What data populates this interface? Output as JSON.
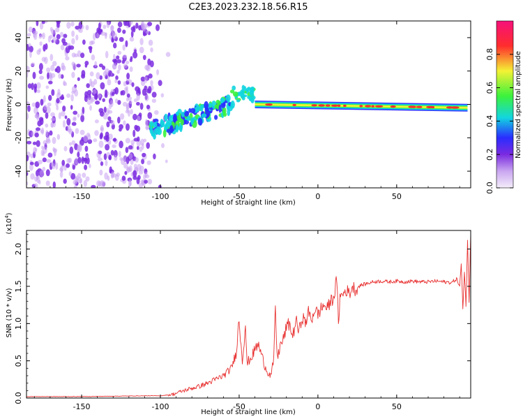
{
  "title": "C2E3.2023.232.18.56.R15",
  "colors": {
    "snr_line": "#e83030",
    "cmap_low": "#f4eefa",
    "cmap_violet": "#7b2be0",
    "cmap_blue": "#2a2cff",
    "cmap_cyan": "#12d5e0",
    "cmap_green": "#3cf23c",
    "cmap_yellow": "#f4f234",
    "cmap_red": "#ff2d2d",
    "cmap_top": "#f5107a"
  },
  "chart_data": [
    {
      "type": "heatmap",
      "title": "C2E3.2023.232.18.56.R15",
      "xlabel": "Height of straight line (km)",
      "ylabel": "Frequency (Hz)",
      "xlim": [
        -185,
        97
      ],
      "ylim": [
        -50,
        50
      ],
      "xticks": [
        -150,
        -100,
        -50,
        0,
        50
      ],
      "xtick_labels": [
        "-150",
        "-100",
        "-50",
        "0",
        "50"
      ],
      "yticks": [
        -40,
        -20,
        0,
        20,
        40
      ],
      "ytick_labels": [
        "-40",
        "-20",
        "0",
        "20",
        "40"
      ],
      "description_regions": [
        {
          "x_from": -185,
          "x_to": -105,
          "freq_from": -50,
          "freq_to": 50,
          "amplitude": 0.1,
          "pattern": "noise"
        },
        {
          "x_from": -105,
          "x_to": -55,
          "freq_start": -15,
          "freq_end": 0,
          "amplitude": 0.3,
          "pattern": "rising-band"
        },
        {
          "x_from": -55,
          "x_to": -40,
          "freq_center": 5,
          "amplitude": 0.4,
          "pattern": "peak"
        },
        {
          "x_from": -40,
          "x_to": 95,
          "freq_start": 0,
          "freq_end": -2,
          "amplitude": 0.8,
          "pattern": "steady-band"
        }
      ],
      "colorbar": {
        "label": "Normalized spectral amplitude",
        "range": [
          0,
          1
        ],
        "ticks": [
          0.0,
          0.2,
          0.4,
          0.6,
          0.8
        ],
        "tick_labels": [
          "0.0",
          "0.2",
          "0.4",
          "0.6",
          "0.8"
        ]
      }
    },
    {
      "type": "line",
      "xlabel": "Height of straight line (km)",
      "ylabel": "SNR (10 * v/v)",
      "multiplier_label": "(x10",
      "multiplier_exp": "4",
      "multiplier_close": ")",
      "xlim": [
        -185,
        97
      ],
      "ylim": [
        0,
        2.25
      ],
      "xticks": [
        -150,
        -100,
        -50,
        0,
        50
      ],
      "xtick_labels": [
        "-150",
        "-100",
        "-50",
        "0",
        "50"
      ],
      "yticks": [
        0.0,
        0.5,
        1.0,
        1.5,
        2.0
      ],
      "ytick_labels": [
        "0.0",
        "0.5",
        "1.0",
        "1.5",
        "2.0"
      ],
      "series": [
        {
          "name": "SNR",
          "x": [
            -185,
            -150,
            -110,
            -100,
            -92,
            -88,
            -82,
            -75,
            -70,
            -65,
            -60,
            -55,
            -52,
            -50,
            -48,
            -46,
            -45,
            -44,
            -42,
            -40,
            -38,
            -36,
            -34,
            -32,
            -30,
            -28,
            -27,
            -26,
            -25,
            -24,
            -22,
            -20,
            -18,
            -16,
            -14,
            -12,
            -10,
            -8,
            -6,
            -4,
            -2,
            0,
            2,
            4,
            6,
            8,
            10,
            12,
            13,
            14,
            16,
            18,
            20,
            22,
            24,
            26,
            28,
            30,
            35,
            40,
            45,
            50,
            55,
            60,
            65,
            70,
            75,
            80,
            85,
            88,
            90,
            91,
            92,
            93,
            94,
            95,
            96,
            97
          ],
          "values": [
            0.02,
            0.02,
            0.03,
            0.03,
            0.05,
            0.08,
            0.12,
            0.16,
            0.2,
            0.25,
            0.3,
            0.4,
            0.6,
            1.05,
            0.5,
            1.0,
            0.45,
            0.5,
            0.55,
            0.65,
            0.72,
            0.6,
            0.45,
            0.35,
            0.3,
            0.5,
            1.25,
            0.55,
            0.6,
            0.7,
            0.78,
            0.95,
            1.0,
            0.82,
            1.05,
            0.88,
            1.1,
            1.0,
            1.15,
            1.05,
            1.2,
            1.12,
            1.2,
            1.25,
            1.2,
            1.3,
            1.35,
            1.6,
            1.0,
            1.35,
            1.4,
            1.45,
            1.4,
            1.5,
            1.45,
            1.5,
            1.52,
            1.53,
            1.56,
            1.57,
            1.56,
            1.57,
            1.56,
            1.57,
            1.56,
            1.56,
            1.57,
            1.56,
            1.55,
            1.6,
            1.5,
            1.8,
            1.2,
            1.7,
            1.25,
            2.1,
            1.3,
            2.2
          ]
        }
      ]
    }
  ]
}
